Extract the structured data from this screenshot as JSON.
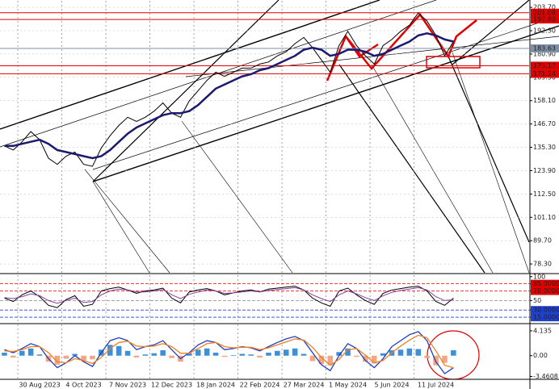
{
  "chart_data": [
    {
      "type": "line",
      "grid": true,
      "categories": [
        null,
        null,
        null,
        null,
        "30 Aug 2023",
        null,
        null,
        null,
        null,
        "4 Oct 2023",
        null,
        null,
        null,
        null,
        "7 Nov 2023",
        null,
        null,
        null,
        null,
        "12 Dec 2023",
        null,
        null,
        null,
        null,
        "18 Jan 2024",
        null,
        null,
        null,
        null,
        "22 Feb 2024",
        null,
        null,
        null,
        null,
        "27 Mar 2024",
        null,
        null,
        null,
        null,
        "1 May 2024",
        null,
        null,
        null,
        null,
        "5 Jun 2024",
        null,
        null,
        null,
        null,
        "11 Jul 2024",
        null,
        null
      ],
      "series": [
        {
          "color": "#000000",
          "values": [
            136,
            134,
            138,
            143,
            139,
            130,
            127,
            131,
            133,
            127,
            126,
            135,
            141,
            146,
            150,
            148,
            150,
            153,
            157,
            152,
            150,
            158,
            163,
            168,
            172,
            170,
            172,
            174,
            174,
            176,
            177,
            180,
            182,
            186,
            189,
            184,
            178,
            172,
            185,
            192,
            185,
            180,
            176,
            185,
            188,
            192,
            195,
            201,
            197,
            190,
            180,
            187
          ]
        },
        {
          "color": "#1a1a6e",
          "values": [
            136,
            136,
            137,
            138,
            139,
            137,
            134,
            133,
            132,
            131,
            130,
            131,
            134,
            138,
            142,
            145,
            147,
            149,
            151,
            152,
            152,
            153,
            156,
            160,
            164,
            166,
            168,
            170,
            171,
            173,
            174,
            176,
            178,
            180,
            183,
            184,
            183,
            180,
            181,
            183,
            183,
            182,
            180,
            181,
            183,
            185,
            187,
            190,
            191,
            190,
            188,
            187
          ]
        }
      ],
      "ylim": [
        74.0,
        206.9
      ],
      "yticks": [
        {
          "value": 203.7,
          "label": "203.70"
        },
        {
          "value": 192.3,
          "label": "192.30"
        },
        {
          "value": 180.9,
          "label": "180.90"
        },
        {
          "value": 169.5,
          "label": "169.50"
        },
        {
          "value": 158.1,
          "label": "158.10"
        },
        {
          "value": 146.7,
          "label": "146.70"
        },
        {
          "value": 135.3,
          "label": "135.30"
        },
        {
          "value": 123.9,
          "label": "123.90"
        },
        {
          "value": 112.5,
          "label": "112.50"
        },
        {
          "value": 101.1,
          "label": "101.10"
        },
        {
          "value": 89.7,
          "label": "89.70"
        },
        {
          "value": 78.3,
          "label": "78.30"
        }
      ],
      "hlines": [
        {
          "value": 201.08,
          "label": "201.08",
          "color": "#e00000"
        },
        {
          "value": 197.8,
          "label": "197.80",
          "color": "#e00000"
        },
        {
          "value": 183.63,
          "label": "183.63",
          "color": "#7f8fa6"
        },
        {
          "value": 175.17,
          "label": "175.17",
          "color": "#e00000"
        },
        {
          "value": 171.24,
          "label": "171.24",
          "color": "#e00000"
        }
      ]
    },
    {
      "type": "line",
      "series": [
        {
          "color": "#000000",
          "values": [
            55,
            48,
            62,
            70,
            58,
            40,
            35,
            52,
            60,
            38,
            42,
            70,
            75,
            78,
            72,
            65,
            70,
            72,
            76,
            55,
            45,
            68,
            72,
            75,
            70,
            62,
            66,
            70,
            72,
            68,
            74,
            76,
            78,
            80,
            72,
            55,
            45,
            38,
            70,
            76,
            62,
            50,
            42,
            65,
            72,
            75,
            78,
            80,
            70,
            48,
            40,
            55
          ]
        },
        {
          "color": "#8a3fa0",
          "values": [
            56,
            54,
            58,
            64,
            60,
            50,
            44,
            50,
            55,
            46,
            48,
            62,
            70,
            74,
            72,
            68,
            68,
            70,
            73,
            62,
            54,
            63,
            68,
            72,
            70,
            65,
            66,
            68,
            70,
            68,
            71,
            73,
            75,
            77,
            72,
            62,
            54,
            48,
            62,
            70,
            64,
            56,
            50,
            60,
            67,
            71,
            74,
            77,
            72,
            58,
            50,
            52
          ]
        }
      ],
      "ylim": [
        5,
        103
      ],
      "yticks": [
        100,
        {
          "value": 85,
          "label": "85.0000",
          "color": "#e00000"
        },
        {
          "value": 70,
          "label": "70.0000",
          "color": "#e00000"
        },
        50,
        {
          "value": 30,
          "label": "30.0000",
          "color": "#2040d0"
        },
        {
          "value": 15,
          "label": "15.0000",
          "color": "#2040d0"
        }
      ],
      "hlines": [
        {
          "value": 85,
          "color": "#e00000"
        },
        {
          "value": 70,
          "color": "#e00000"
        },
        {
          "value": 50,
          "color": "#888888"
        },
        {
          "value": 30,
          "color": "#2040d0"
        },
        {
          "value": 15,
          "color": "#2040d0"
        }
      ]
    },
    {
      "type": "combo",
      "up_color": "#3d8fd8",
      "down_color": "#f4a582",
      "series": [
        {
          "kind": "bar",
          "values": [
            0.5,
            -0.3,
            0.8,
            1.2,
            0.2,
            -1.0,
            -1.5,
            -0.5,
            0.3,
            -0.8,
            -0.6,
            1.0,
            1.8,
            1.6,
            0.8,
            -0.3,
            0.2,
            0.4,
            0.9,
            -0.4,
            -1.0,
            0.4,
            1.0,
            1.2,
            0.5,
            -0.2,
            0.1,
            0.3,
            0.2,
            -0.3,
            0.5,
            0.8,
            1.0,
            1.2,
            0.3,
            -0.9,
            -1.4,
            -1.6,
            0.6,
            1.2,
            -0.2,
            -1.0,
            -1.3,
            0.4,
            0.9,
            1.0,
            1.2,
            1.1,
            -0.4,
            -1.6,
            -1.2,
            0.9
          ]
        },
        {
          "kind": "line",
          "color": "#1f3fbf",
          "values": [
            1.0,
            0.5,
            1.2,
            2.0,
            1.5,
            -0.5,
            -2.0,
            -1.2,
            0.0,
            -1.0,
            -1.8,
            0.5,
            2.5,
            3.0,
            2.5,
            1.0,
            1.5,
            1.8,
            2.5,
            1.0,
            -0.5,
            0.5,
            1.8,
            2.5,
            2.2,
            1.0,
            1.2,
            1.5,
            1.3,
            0.8,
            1.5,
            2.2,
            2.8,
            3.2,
            2.5,
            0.5,
            -1.5,
            -2.5,
            0.0,
            2.0,
            1.2,
            -0.8,
            -2.0,
            -0.5,
            1.5,
            2.5,
            3.5,
            4.0,
            2.5,
            -1.0,
            -3.0,
            -2.0
          ]
        },
        {
          "kind": "line",
          "color": "#f08020",
          "values": [
            0.8,
            0.7,
            1.0,
            1.5,
            1.5,
            0.5,
            -1.0,
            -1.2,
            -0.5,
            -0.8,
            -1.3,
            -0.3,
            1.2,
            2.2,
            2.4,
            1.6,
            1.5,
            1.6,
            2.0,
            1.5,
            0.4,
            0.4,
            1.2,
            2.0,
            2.2,
            1.5,
            1.3,
            1.4,
            1.4,
            1.0,
            1.3,
            1.8,
            2.3,
            2.8,
            2.6,
            1.4,
            -0.3,
            -1.6,
            -0.6,
            1.0,
            1.2,
            0.1,
            -1.2,
            -0.8,
            0.5,
            1.6,
            2.6,
            3.4,
            3.0,
            0.8,
            -1.6,
            -2.0
          ]
        }
      ],
      "ylim": [
        -3.8,
        5.2
      ],
      "yticks": [
        4.135,
        {
          "value": 0,
          "label": "0.00"
        },
        -3.4608
      ]
    }
  ]
}
